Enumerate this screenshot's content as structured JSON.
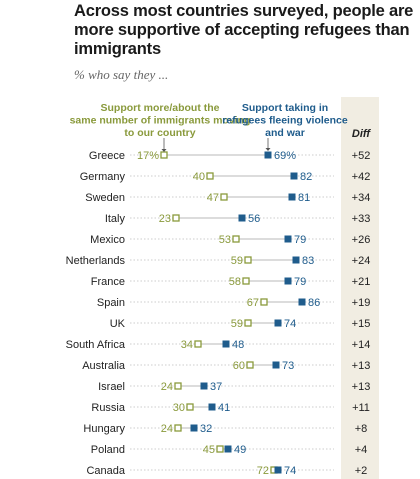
{
  "chart_data": {
    "type": "dot",
    "title": "Across most countries surveyed, people are more supportive of accepting refugees than immigrants",
    "subtitle": "% who say they ...",
    "diff_label": "Diff",
    "categories": [
      "Greece",
      "Germany",
      "Sweden",
      "Italy",
      "Mexico",
      "Netherlands",
      "France",
      "Spain",
      "UK",
      "South Africa",
      "Australia",
      "Israel",
      "Russia",
      "Hungary",
      "Poland",
      "Canada"
    ],
    "series": [
      {
        "name": "Support more/about the same number of immigrants moving to our country",
        "color": "#8a9a3c",
        "marker": "hollow-square",
        "values": [
          17,
          40,
          47,
          23,
          53,
          59,
          58,
          67,
          59,
          34,
          60,
          24,
          30,
          24,
          45,
          72
        ],
        "labels": [
          "17%",
          "40",
          "47",
          "23",
          "53",
          "59",
          "58",
          "67",
          "59",
          "34",
          "60",
          "24",
          "30",
          "24",
          "45",
          "72"
        ]
      },
      {
        "name": "Support taking in refugees fleeing violence and war",
        "color": "#1f5c8c",
        "marker": "filled-square",
        "values": [
          69,
          82,
          81,
          56,
          79,
          83,
          79,
          86,
          74,
          48,
          73,
          37,
          41,
          32,
          49,
          74
        ],
        "labels": [
          "69%",
          "82",
          "81",
          "56",
          "79",
          "83",
          "79",
          "86",
          "74",
          "48",
          "73",
          "37",
          "41",
          "32",
          "49",
          "74"
        ]
      }
    ],
    "diff": [
      "+52",
      "+42",
      "+34",
      "+33",
      "+26",
      "+24",
      "+21",
      "+19",
      "+15",
      "+14",
      "+13",
      "+13",
      "+11",
      "+8",
      "+4",
      "+2"
    ],
    "xlim": [
      0,
      100
    ],
    "legend_placement": "top, above chart as annotations"
  }
}
